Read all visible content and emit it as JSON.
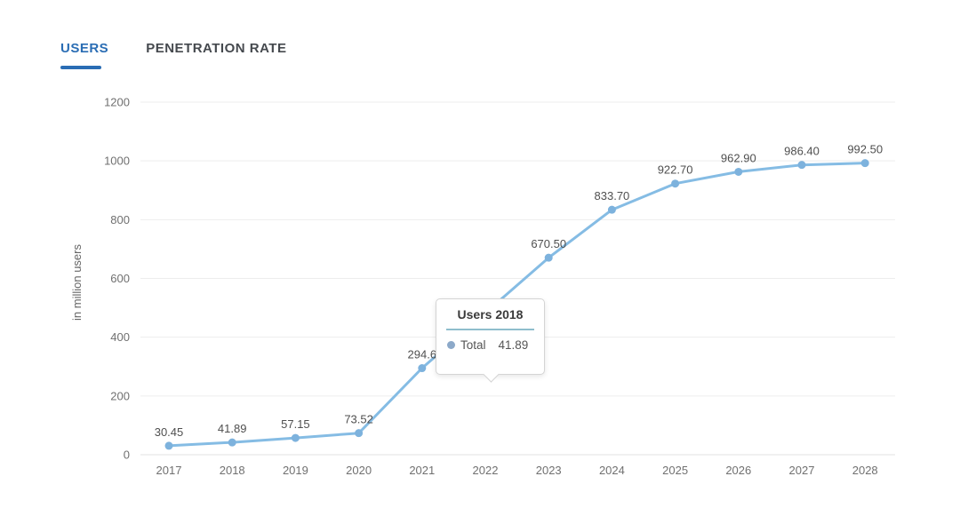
{
  "tabs": [
    {
      "label": "USERS",
      "active": true
    },
    {
      "label": "PENETRATION RATE",
      "active": false
    }
  ],
  "colors": {
    "accent": "#2a6db4",
    "tab_inactive": "#45494e",
    "line": "#85bce4",
    "marker": "#7db2dd",
    "grid": "#ededed",
    "baseline": "#e2e2e2",
    "axis_text": "#707070",
    "point_label_text": "#4f4f4f",
    "tooltip_divider": "#8fbecd",
    "tooltip_dot": "#8ca9c9"
  },
  "chart_data": {
    "type": "line",
    "title": "",
    "xlabel": "",
    "ylabel": "in million users",
    "categories": [
      "2017",
      "2018",
      "2019",
      "2020",
      "2021",
      "2022",
      "2023",
      "2024",
      "2025",
      "2026",
      "2027",
      "2028"
    ],
    "series": [
      {
        "name": "Total",
        "values": [
          30.45,
          41.89,
          57.15,
          73.52,
          294.6,
          null,
          670.5,
          833.7,
          922.7,
          962.9,
          986.4,
          992.5
        ]
      }
    ],
    "point_labels": [
      "30.45",
      "41.89",
      "57.15",
      "73.52",
      "294.6",
      null,
      "670.50",
      "833.70",
      "922.70",
      "962.90",
      "986.40",
      "992.50"
    ],
    "note": "2022 point and its label are hidden behind the tooltip",
    "ylim": [
      0,
      1200
    ],
    "yticks": [
      0,
      200,
      400,
      600,
      800,
      1000,
      1200
    ],
    "grid": true,
    "legend": false
  },
  "tooltip": {
    "title": "Users 2018",
    "series": "Total",
    "value": "41.89"
  }
}
